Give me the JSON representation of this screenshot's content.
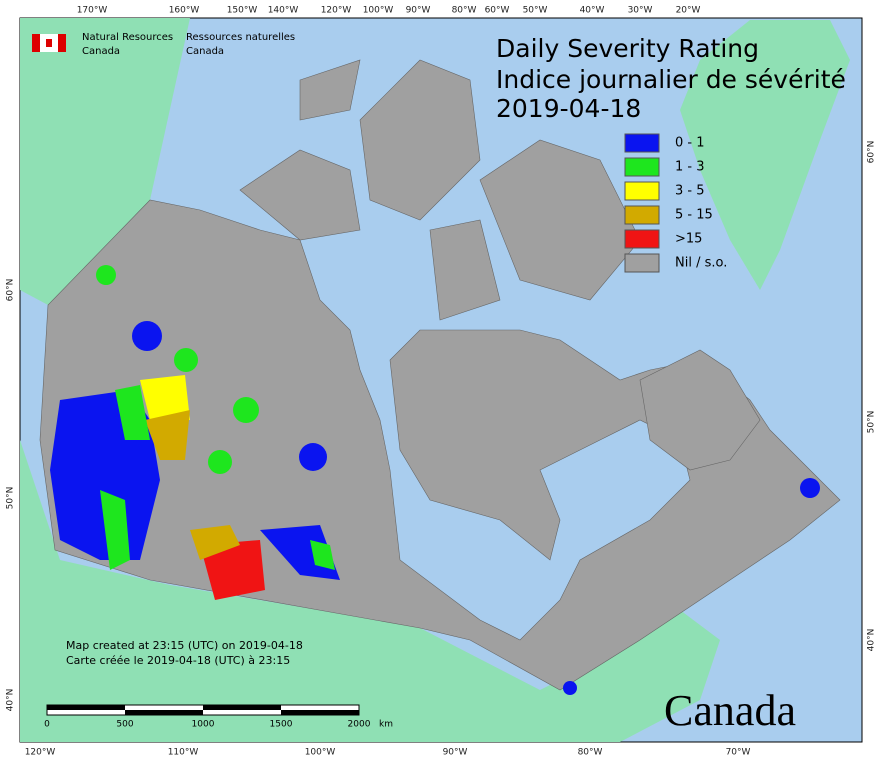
{
  "header": {
    "agency_en": "Natural Resources",
    "agency_en2": "Canada",
    "agency_fr": "Ressources naturelles",
    "agency_fr2": "Canada"
  },
  "title": {
    "line1": "Daily Severity Rating",
    "line2": "Indice journalier de sévérité",
    "date": "2019-04-18"
  },
  "legend": [
    {
      "label": "0 - 1",
      "color": "#0a14f0"
    },
    {
      "label": "1 - 3",
      "color": "#1ee61e"
    },
    {
      "label": "3 - 5",
      "color": "#ffff00"
    },
    {
      "label": "5 - 15",
      "color": "#d2aa00"
    },
    {
      "label": ">15",
      "color": "#f01414"
    },
    {
      "label": "Nil / s.o.",
      "color": "#a0a0a0"
    }
  ],
  "graticule": {
    "top": [
      "170°W",
      "160°W",
      "150°W",
      "140°W",
      "120°W",
      "100°W",
      "90°W",
      "80°W",
      "60°W",
      "50°W",
      "40°W",
      "30°W",
      "20°W"
    ],
    "bottom": [
      "120°W",
      "110°W",
      "100°W",
      "90°W",
      "80°W",
      "70°W"
    ],
    "left": [
      "60°N",
      "50°N",
      "40°N"
    ],
    "right": [
      "60°N",
      "50°N",
      "40°N"
    ]
  },
  "footer": {
    "created_en": "Map created at 23:15 (UTC) on 2019-04-18",
    "created_fr": "Carte créée le 2019-04-18 (UTC) à 23:15",
    "scale": [
      "0",
      "500",
      "1000",
      "1500",
      "2000"
    ],
    "scale_unit": "km",
    "wordmark": "Canada"
  }
}
